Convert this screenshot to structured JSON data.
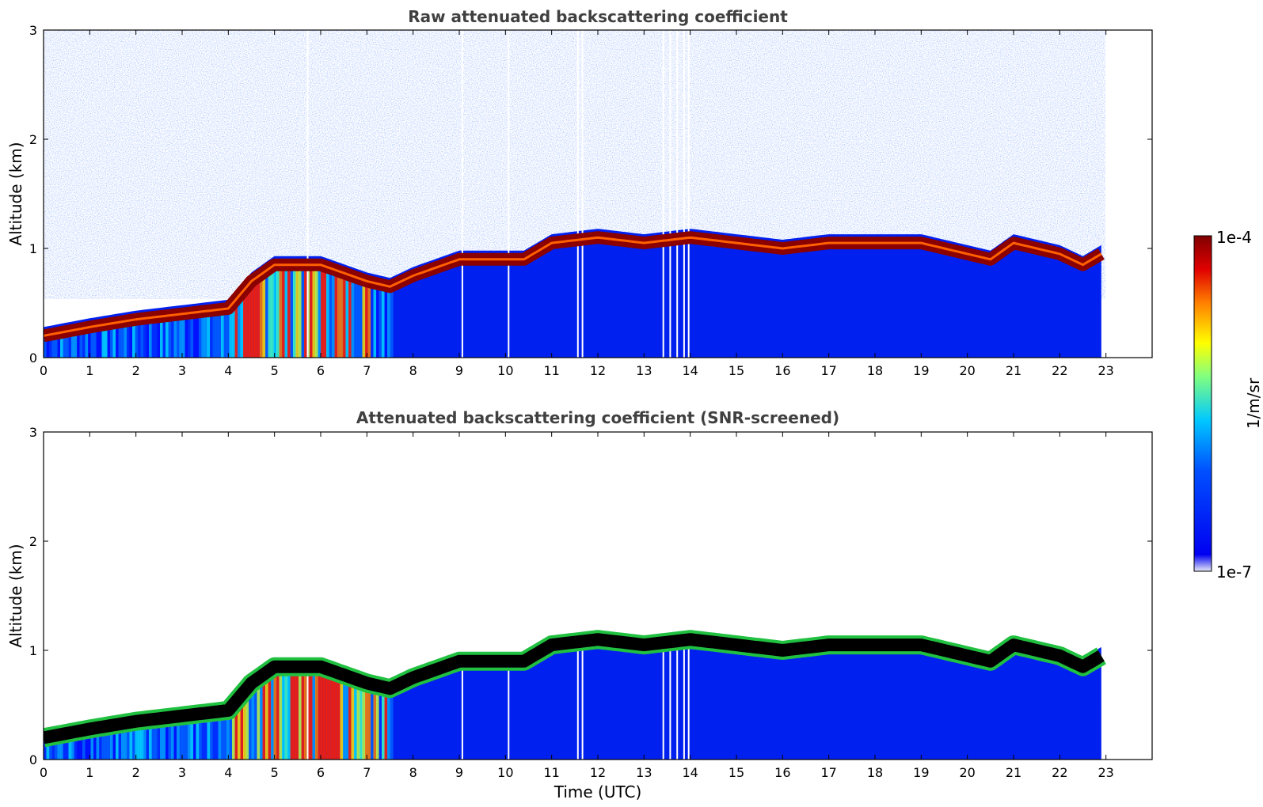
{
  "chart_data": [
    {
      "type": "heatmap",
      "title": "Raw attenuated backscattering coefficient",
      "xlabel": "",
      "ylabel": "Altitude (km)",
      "xlim": [
        0,
        24
      ],
      "ylim": [
        0,
        3
      ],
      "xticks": [
        "0",
        "1",
        "2",
        "3",
        "4",
        "5",
        "6",
        "7",
        "8",
        "9",
        "10",
        "11",
        "12",
        "13",
        "14",
        "15",
        "16",
        "17",
        "18",
        "19",
        "20",
        "21",
        "22",
        "23"
      ],
      "yticks": [
        "0",
        "1",
        "2",
        "3"
      ],
      "data_end_hour": 22.9,
      "layer_top_km": [
        [
          0,
          0.3
        ],
        [
          1,
          0.38
        ],
        [
          2,
          0.45
        ],
        [
          3,
          0.5
        ],
        [
          4,
          0.55
        ],
        [
          4.5,
          0.8
        ],
        [
          5,
          0.95
        ],
        [
          6,
          0.95
        ],
        [
          7,
          0.8
        ],
        [
          7.5,
          0.75
        ],
        [
          8,
          0.85
        ],
        [
          9,
          1.0
        ],
        [
          10,
          1.0
        ],
        [
          10.4,
          1.0
        ],
        [
          11,
          1.15
        ],
        [
          12,
          1.2
        ],
        [
          13,
          1.15
        ],
        [
          14,
          1.2
        ],
        [
          15,
          1.15
        ],
        [
          16,
          1.1
        ],
        [
          17,
          1.15
        ],
        [
          18,
          1.15
        ],
        [
          19,
          1.15
        ],
        [
          20,
          1.05
        ],
        [
          20.5,
          1.0
        ],
        [
          21,
          1.15
        ],
        [
          22,
          1.05
        ],
        [
          22.5,
          0.95
        ],
        [
          22.9,
          1.05
        ]
      ],
      "grid": false
    },
    {
      "type": "heatmap",
      "title": "Attenuated backscattering coefficient (SNR-screened)",
      "xlabel": "Time (UTC)",
      "ylabel": "Altitude (km)",
      "xlim": [
        0,
        24
      ],
      "ylim": [
        0,
        3
      ],
      "xticks": [
        "0",
        "1",
        "2",
        "3",
        "4",
        "5",
        "6",
        "7",
        "8",
        "9",
        "10",
        "11",
        "12",
        "13",
        "14",
        "15",
        "16",
        "17",
        "18",
        "19",
        "20",
        "21",
        "22",
        "23"
      ],
      "yticks": [
        "0",
        "1",
        "2",
        "3"
      ],
      "data_end_hour": 22.9,
      "grid": false
    }
  ],
  "colorbar": {
    "label": "1/m/sr",
    "max_label": "1e-4",
    "min_label": "1e-7",
    "scale": "log",
    "colors": [
      "#e8e8f8",
      "#0000f0",
      "#0050ff",
      "#00c8ff",
      "#80ff80",
      "#ffff00",
      "#ff8000",
      "#e00000",
      "#800000"
    ]
  }
}
